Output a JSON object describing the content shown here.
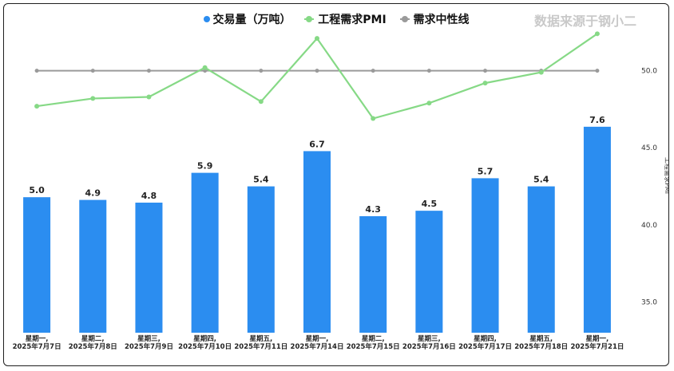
{
  "legend": {
    "volume": {
      "label": "交易量（万吨）",
      "color": "#2b8df0"
    },
    "pmi": {
      "label": "工程需求PMI",
      "color": "#86d986"
    },
    "neutral": {
      "label": "需求中性线",
      "color": "#9a9a9a"
    }
  },
  "source_text": "数据来源于钢小二",
  "chart_data": {
    "type": "bar",
    "title": "",
    "categories": [
      "星期一,\n2025年7月7日",
      "星期二,\n2025年7月8日",
      "星期三,\n2025年7月9日",
      "星期四,\n2025年7月10日",
      "星期五,\n2025年7月11日",
      "星期一,\n2025年7月14日",
      "星期二,\n2025年7月15日",
      "星期三,\n2025年7月16日",
      "星期四,\n2025年7月17日",
      "星期五,\n2025年7月18日",
      "星期一,\n2025年7月21日"
    ],
    "series": [
      {
        "name": "交易量（万吨）",
        "type": "bar",
        "axis": "left",
        "values": [
          5.0,
          4.9,
          4.8,
          5.9,
          5.4,
          6.7,
          4.3,
          4.5,
          5.7,
          5.4,
          7.6
        ],
        "labels": [
          "5.0",
          "4.9",
          "4.8",
          "5.9",
          "5.4",
          "6.7",
          "4.3",
          "4.5",
          "5.7",
          "5.4",
          "7.6"
        ]
      },
      {
        "name": "工程需求PMI",
        "type": "line",
        "axis": "right",
        "values": [
          47.7,
          48.2,
          48.3,
          50.2,
          48.0,
          52.1,
          46.9,
          47.9,
          49.2,
          49.9,
          52.4
        ]
      },
      {
        "name": "需求中性线",
        "type": "line",
        "axis": "right",
        "values": [
          50,
          50,
          50,
          50,
          50,
          50,
          50,
          50,
          50,
          50,
          50
        ]
      }
    ],
    "left_axis": {
      "min": 0,
      "max": 11.6
    },
    "right_axis": {
      "label": "工程需求PMI",
      "min": 33,
      "max": 53.4,
      "ticks": [
        "35.0",
        "40.0",
        "45.0",
        "50.0"
      ]
    },
    "grid": false,
    "legend_position": "top"
  }
}
